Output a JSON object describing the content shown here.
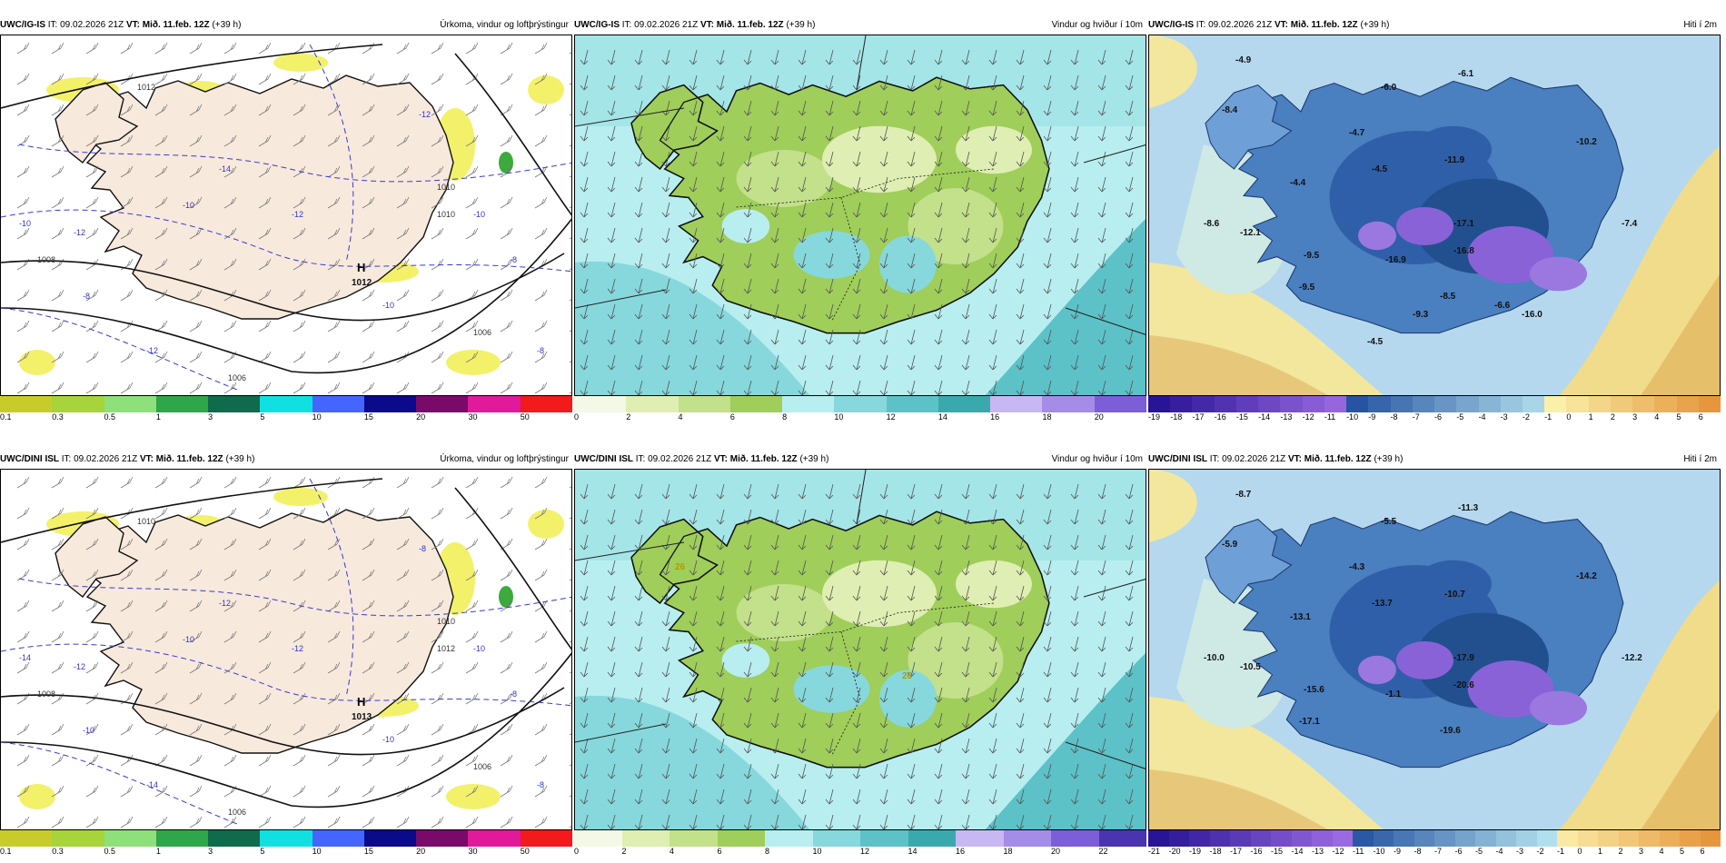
{
  "panels": [
    {
      "model": "UWC/IG-IS",
      "it": "IT: 09.02.2026 21Z",
      "vt": "VT: Mið. 11.feb. 12Z",
      "lead": "(+39 h)",
      "title": "Úrkoma, vindur og loftþrýstingur",
      "type": "precip",
      "cbar_labels": [
        "0.1",
        "0.3",
        "0.5",
        "1",
        "3",
        "5",
        "10",
        "15",
        "20",
        "30",
        "50"
      ],
      "pressure_labels": [
        "1012",
        "1010",
        "1008",
        "1006",
        "1006",
        "1010"
      ],
      "high_label": "H",
      "high_value": "1012",
      "temp_contours": [
        "-10",
        "-12",
        "-10",
        "-8",
        "-12",
        "-14",
        "-12",
        "-8",
        "-10",
        "-12",
        "-10",
        "-8"
      ]
    },
    {
      "model": "UWC/IG-IS",
      "it": "IT: 09.02.2026 21Z",
      "vt": "VT: Mið. 11.feb. 12Z",
      "lead": "(+39 h)",
      "title": "Vindur og hviður í 10m",
      "type": "wind",
      "cbar_labels": [
        "0",
        "2",
        "4",
        "6",
        "8",
        "10",
        "12",
        "14",
        "16",
        "18",
        "20"
      ]
    },
    {
      "model": "UWC/IG-IS",
      "it": "IT: 09.02.2026 21Z",
      "vt": "VT: Mið. 11.feb. 12Z",
      "lead": "(+39 h)",
      "title": "Hiti í 2m",
      "type": "temp",
      "cbar_labels": [
        "-19",
        "-18",
        "-17",
        "-16",
        "-15",
        "-14",
        "-13",
        "-12",
        "-11",
        "-10",
        "-9",
        "-8",
        "-7",
        "-6",
        "-5",
        "-4",
        "-3",
        "-2",
        "-1",
        "0",
        "1",
        "2",
        "3",
        "4",
        "5",
        "6"
      ],
      "temp_labels": [
        "-4.9",
        "-8.4",
        "-6.0",
        "-6.1",
        "-4.7",
        "-10.2",
        "-4.5",
        "-4.4",
        "-11.9",
        "-12.1",
        "-8.6",
        "-9.5",
        "-17.1",
        "-16.8",
        "-16.9",
        "-9.5",
        "-8.5",
        "-7.4",
        "-6.6",
        "-9.3",
        "-16.0",
        "-4.5"
      ]
    },
    {
      "model": "UWC/DINI ISL",
      "it": "IT: 09.02.2026 21Z",
      "vt": "VT: Mið. 11.feb. 12Z",
      "lead": "(+39 h)",
      "title": "Úrkoma, vindur og loftþrýstingur",
      "type": "precip",
      "cbar_labels": [
        "0.1",
        "0.3",
        "0.5",
        "1",
        "3",
        "5",
        "10",
        "15",
        "20",
        "30",
        "50"
      ],
      "pressure_labels": [
        "1010",
        "1012",
        "1008",
        "1006",
        "1006",
        "1010"
      ],
      "high_label": "H",
      "high_value": "1013",
      "temp_contours": [
        "-14",
        "-12",
        "-10",
        "-10",
        "-14",
        "-12",
        "-8",
        "-8",
        "-10",
        "-12",
        "-10",
        "-8"
      ]
    },
    {
      "model": "UWC/DINI ISL",
      "it": "IT: 09.02.2026 21Z",
      "vt": "VT: Mið. 11.feb. 12Z",
      "lead": "(+39 h)",
      "title": "Vindur og hviður í 10m",
      "type": "wind",
      "cbar_labels": [
        "0",
        "2",
        "4",
        "6",
        "8",
        "10",
        "12",
        "14",
        "16",
        "18",
        "20",
        "22"
      ],
      "gust_labels": [
        "26",
        "26"
      ]
    },
    {
      "model": "UWC/DINI ISL",
      "it": "IT: 09.02.2026 21Z",
      "vt": "VT: Mið. 11.feb. 12Z",
      "lead": "(+39 h)",
      "title": "Hiti í 2m",
      "type": "temp",
      "cbar_labels": [
        "-21",
        "-20",
        "-19",
        "-18",
        "-17",
        "-16",
        "-15",
        "-14",
        "-13",
        "-12",
        "-11",
        "-10",
        "-9",
        "-8",
        "-7",
        "-6",
        "-5",
        "-4",
        "-3",
        "-2",
        "-1",
        "0",
        "1",
        "2",
        "3",
        "4",
        "5",
        "6"
      ],
      "temp_labels": [
        "-8.7",
        "-5.9",
        "-5.5",
        "-11.3",
        "-4.3",
        "-14.2",
        "-13.7",
        "-13.1",
        "-10.7",
        "-10.5",
        "-10.0",
        "-15.6",
        "-17.9",
        "-20.6",
        "-1.1",
        "-17.1",
        "-19.6",
        "-12.2"
      ]
    }
  ],
  "colors": {
    "precip_bar": [
      "#c8cc2a",
      "#a7d43a",
      "#8de07a",
      "#2fa64a",
      "#0f6b4b",
      "#10e0e0",
      "#4466ff",
      "#0a0a8a",
      "#7a0a6a",
      "#e01a9a",
      "#f21a1a"
    ],
    "wind_bar": [
      "#f4f8e6",
      "#dfeeb2",
      "#c3e08a",
      "#9fce5a",
      "#b8eef0",
      "#86d8dc",
      "#5cc2c8",
      "#3aa9ad",
      "#c7b8f4",
      "#a58ce8",
      "#7c5ed8",
      "#4a34b0"
    ],
    "temp_cold": "#2f5fa8",
    "temp_very_cold": "#8a62d8",
    "temp_warm": "#f0dc8a",
    "land_precip": "#f7e9dc",
    "sea": "#ffffff"
  }
}
